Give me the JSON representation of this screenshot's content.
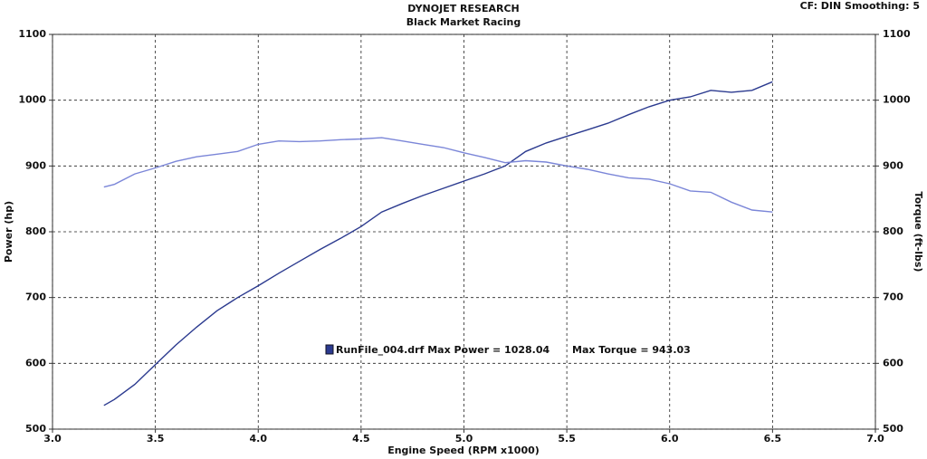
{
  "chart_data": {
    "type": "line",
    "title": "DYNOJET RESEARCH",
    "subtitle": "Black Market Racing",
    "corner_note": "CF: DIN  Smoothing: 5",
    "annotations": [
      "RunFile_004.drf Max Power = 1028.04",
      "Max Torque = 943.03"
    ],
    "x_label": "Engine Speed (RPM x1000)",
    "y_label": "Power (hp)",
    "y2_label": "Torque (ft-lbs)",
    "x": [
      3.25,
      3.3,
      3.4,
      3.5,
      3.6,
      3.7,
      3.8,
      3.9,
      4.0,
      4.1,
      4.2,
      4.3,
      4.4,
      4.5,
      4.6,
      4.7,
      4.8,
      4.9,
      5.0,
      5.1,
      5.2,
      5.3,
      5.4,
      5.5,
      5.6,
      5.7,
      5.8,
      5.9,
      6.0,
      6.1,
      6.2,
      6.3,
      6.4,
      6.5
    ],
    "series": [
      {
        "color": "#2b3a8f",
        "values": [
          536,
          545,
          568,
          598,
          628,
          655,
          680,
          700,
          718,
          737,
          755,
          773,
          790,
          808,
          830,
          843,
          855,
          866,
          877,
          888,
          900,
          922,
          935,
          945,
          955,
          965,
          978,
          990,
          1000,
          1005,
          1015,
          1012,
          1015,
          1028
        ]
      },
      {
        "color": "#7b86d8",
        "axis": "y2",
        "values": [
          868,
          872,
          888,
          897,
          907,
          914,
          918,
          922,
          933,
          938,
          937,
          938,
          940,
          941,
          943,
          938,
          933,
          928,
          920,
          913,
          905,
          908,
          906,
          900,
          895,
          888,
          882,
          880,
          873,
          862,
          860,
          845,
          833,
          830
        ]
      }
    ],
    "xlim": [
      3.0,
      7.0
    ],
    "xticks": [
      {
        "value": 3,
        "label": "3.0"
      },
      3.5,
      {
        "value": 4,
        "label": "4.0"
      },
      4.5,
      {
        "value": 5,
        "label": "5.0"
      },
      5.5,
      {
        "value": 6,
        "label": "6.0"
      },
      6.5,
      {
        "value": 7,
        "label": "7.0"
      }
    ],
    "ylim": [
      500,
      1100
    ],
    "yticks": [
      500,
      600,
      700,
      800,
      900,
      1000,
      1100
    ],
    "y2lim": [
      500,
      1100
    ],
    "y2ticks": [
      500,
      600,
      700,
      800,
      900,
      1000,
      1100
    ],
    "grid": true
  }
}
